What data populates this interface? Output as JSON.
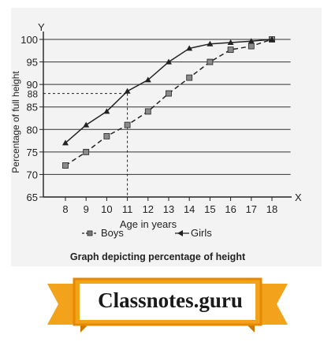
{
  "chart_data": {
    "type": "line",
    "title": "",
    "caption": "Graph depicting percentage of height",
    "xlabel": "Age in years",
    "ylabel": "Percentage of full height",
    "x_axis_letter": "X",
    "y_axis_letter": "Y",
    "x": [
      8,
      9,
      10,
      11,
      12,
      13,
      14,
      15,
      16,
      17,
      18
    ],
    "xlim": [
      7,
      19
    ],
    "ylim": [
      65,
      102
    ],
    "yticks": [
      65,
      70,
      75,
      80,
      85,
      90,
      95,
      100
    ],
    "grid": true,
    "annotation": {
      "label": "88",
      "x": 11,
      "y": 88
    },
    "series": [
      {
        "name": "Boys",
        "style": "dashed",
        "marker": "square",
        "color": "#222222",
        "values": [
          72,
          75,
          78.5,
          81,
          84,
          88,
          91.5,
          95,
          97.7,
          98.5,
          100
        ]
      },
      {
        "name": "Girls",
        "style": "solid",
        "marker": "triangle",
        "color": "#222222",
        "values": [
          77,
          81,
          84,
          88.5,
          91,
          95,
          98,
          99,
          99.3,
          99.6,
          100
        ]
      }
    ],
    "legend": {
      "position": "bottom",
      "items": [
        "Boys",
        "Girls"
      ]
    }
  },
  "banner": {
    "text": "Classnotes.guru",
    "color": "#f2a31b",
    "border_color": "#e58a00"
  }
}
